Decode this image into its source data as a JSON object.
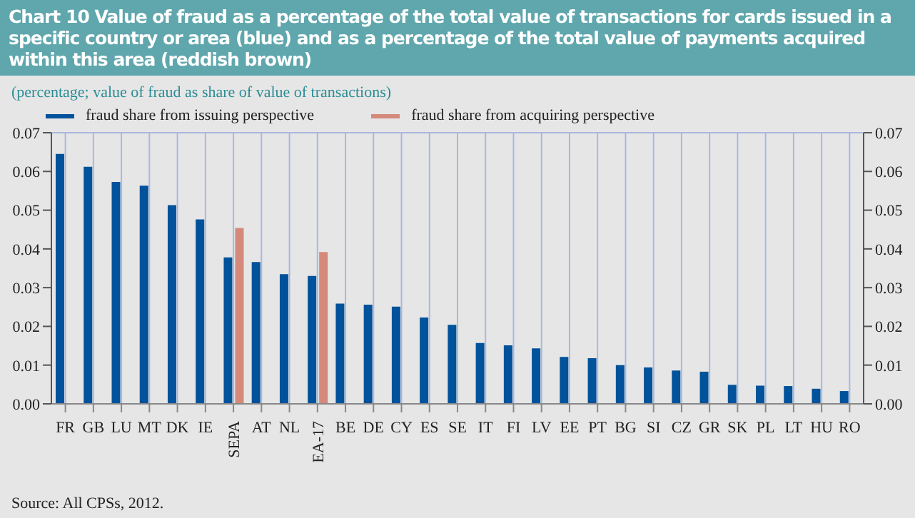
{
  "chart_data": {
    "type": "bar",
    "title": "Chart 10 Value of fraud as a percentage of the total value of transactions for cards issued in a specific country or area (blue) and as a percentage of the total value of payments acquired within this area (reddish brown)",
    "subtitle": "(percentage; value of fraud as share of value of transactions)",
    "categories": [
      "FR",
      "GB",
      "LU",
      "MT",
      "DK",
      "IE",
      "SEPA",
      "AT",
      "NL",
      "EA-17",
      "BE",
      "DE",
      "CY",
      "ES",
      "SE",
      "IT",
      "FI",
      "LV",
      "EE",
      "PT",
      "BG",
      "SI",
      "CZ",
      "GR",
      "SK",
      "PL",
      "LT",
      "HU",
      "RO"
    ],
    "series": [
      {
        "name": "fraud share from issuing perspective",
        "color": "#00529b",
        "values": [
          0.0645,
          0.0612,
          0.0573,
          0.0563,
          0.0513,
          0.0476,
          0.0378,
          0.0366,
          0.0335,
          0.033,
          0.0259,
          0.0256,
          0.0251,
          0.0223,
          0.0204,
          0.0157,
          0.0151,
          0.0143,
          0.0121,
          0.0118,
          0.01,
          0.0094,
          0.0086,
          0.0083,
          0.0049,
          0.0047,
          0.0046,
          0.0039,
          0.0033
        ]
      },
      {
        "name": "fraud share from acquiring perspective",
        "color": "#d4897a",
        "values": [
          null,
          null,
          null,
          null,
          null,
          null,
          0.0454,
          null,
          null,
          0.0392,
          null,
          null,
          null,
          null,
          null,
          null,
          null,
          null,
          null,
          null,
          null,
          null,
          null,
          null,
          null,
          null,
          null,
          null,
          null
        ]
      }
    ],
    "ylim": [
      0,
      0.07
    ],
    "yticks": [
      {
        "value": 0,
        "label": "0.00"
      },
      0.01,
      0.02,
      0.03,
      0.04,
      0.05,
      0.06,
      0.07
    ],
    "y2lim": [
      0,
      0.07
    ],
    "y2ticks": [
      {
        "value": 0,
        "label": "0.00"
      },
      0.01,
      0.02,
      0.03,
      0.04,
      0.05,
      0.06,
      0.07
    ],
    "grid": true,
    "legend": "top left",
    "annotations": [
      "Source: All CPSs, 2012."
    ]
  }
}
